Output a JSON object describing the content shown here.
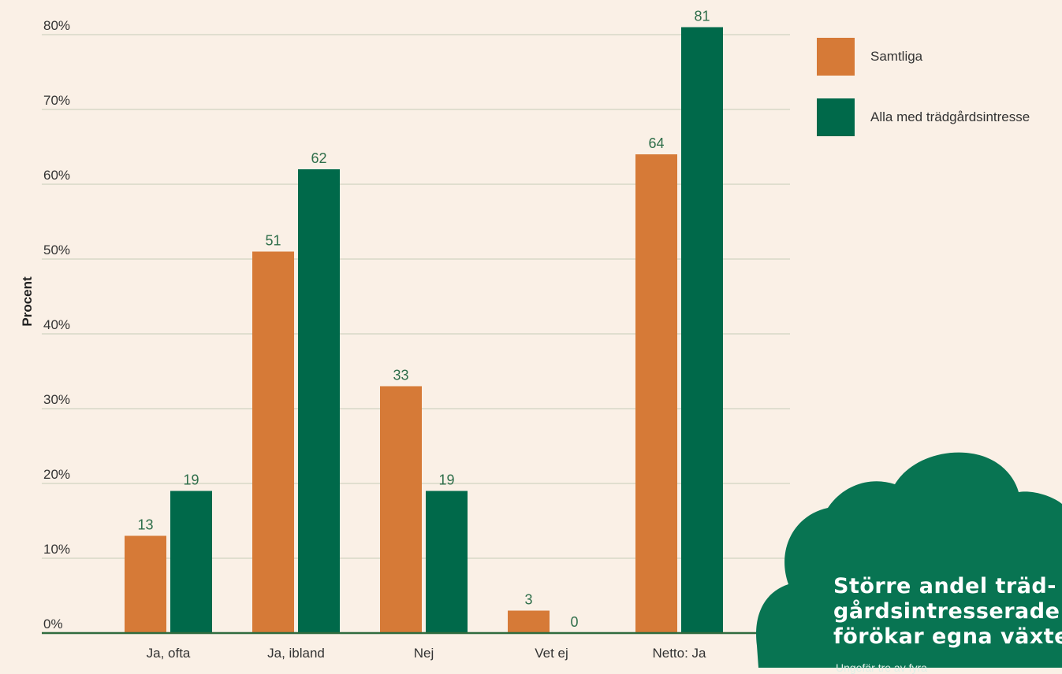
{
  "colors": {
    "samtliga": "#d67a37",
    "tradgard": "#00694a",
    "grid": "#c7cdb8",
    "axis": "#2f6b3e",
    "label_green": "#2e6e4a",
    "cloud": "#087452"
  },
  "chart_data": {
    "type": "bar",
    "categories": [
      "Ja, ofta",
      "Ja, ibland",
      "Nej",
      "Vet ej",
      "Netto: Ja"
    ],
    "series": [
      {
        "name": "Samtliga",
        "values": [
          13,
          51,
          33,
          3,
          64
        ]
      },
      {
        "name": "Alla med trädgårdsintresse",
        "values": [
          19,
          62,
          19,
          0,
          81
        ]
      }
    ],
    "ylabel": "Procent",
    "xlabel": "",
    "ylim": [
      0,
      80
    ],
    "yticks": [
      "0%",
      "10%",
      "20%",
      "30%",
      "40%",
      "50%",
      "60%",
      "70%",
      "80%"
    ],
    "grid": true,
    "legend_position": "top-right"
  },
  "callout": {
    "lines": [
      "Större andel träd-",
      "gårdsintresserade",
      "förökar egna växter"
    ],
    "subtext": "Ungefär tre av fyra"
  }
}
